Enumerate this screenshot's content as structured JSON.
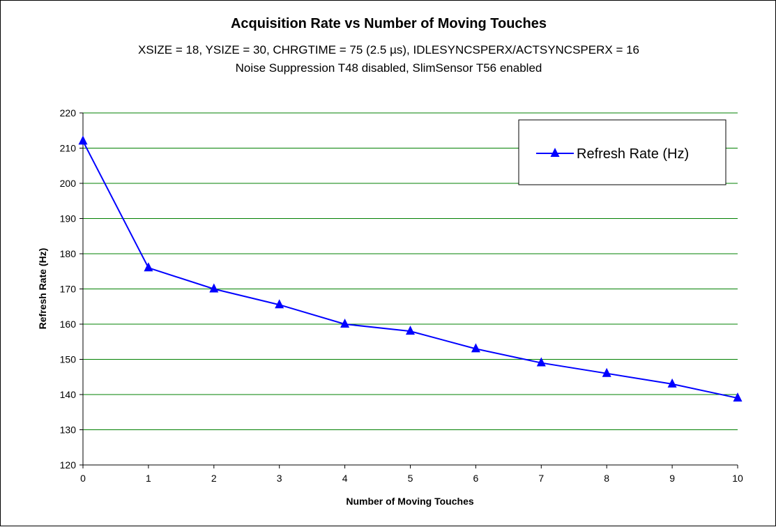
{
  "chart_data": {
    "type": "line",
    "title": "Acquisition Rate vs Number of Moving Touches",
    "subtitle_lines": [
      "XSIZE = 18, YSIZE = 30, CHRGTIME = 75 (2.5 µs), IDLESYNCSPERX/ACTSYNCSPERX = 16",
      "Noise Suppression T48 disabled, SlimSensor T56 enabled"
    ],
    "xlabel": "Number of Moving Touches",
    "ylabel": "Refresh Rate (Hz)",
    "x": [
      0,
      1,
      2,
      3,
      4,
      5,
      6,
      7,
      8,
      9,
      10
    ],
    "series": [
      {
        "name": "Refresh Rate (Hz)",
        "color": "#0000ff",
        "marker": "triangle",
        "values": [
          212,
          176,
          170,
          165.5,
          160,
          158,
          153,
          149,
          146,
          143,
          139
        ]
      }
    ],
    "xlim": [
      0,
      10
    ],
    "ylim": [
      120,
      220
    ],
    "xticks": [
      "0",
      "1",
      "2",
      "3",
      "4",
      "5",
      "6",
      "7",
      "8",
      "9",
      "10"
    ],
    "yticks": [
      "120",
      "130",
      "140",
      "150",
      "160",
      "170",
      "180",
      "190",
      "200",
      "210",
      "220"
    ],
    "grid": true,
    "grid_color": "#008000",
    "legend_position": "top-right"
  }
}
